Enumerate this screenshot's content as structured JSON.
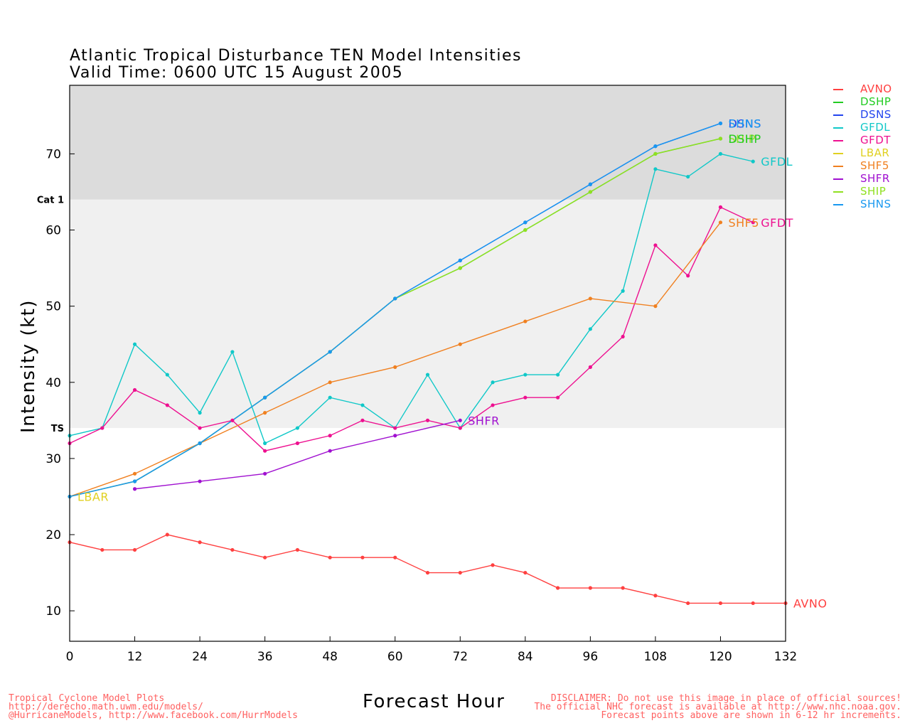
{
  "header": {
    "title": "Atlantic Tropical Disturbance TEN Model Intensities",
    "subtitle": "Valid Time: 0600 UTC 15 August 2005"
  },
  "footer": {
    "left": [
      "Tropical Cyclone Model Plots",
      "http://derecho.math.uwm.edu/models/",
      "@HurricaneModels, http://www.facebook.com/HurrModels"
    ],
    "right": [
      "DISCLAIMER: Do not use this image in place of official sources!",
      "The official NHC forecast is available at http://www.nhc.noaa.gov.",
      "Forecast points above are shown in 6-12 hr increments."
    ]
  },
  "chart_data": {
    "type": "line",
    "title": "Atlantic Tropical Disturbance TEN Model Intensities",
    "subtitle": "Valid Time: 0600 UTC 15 August 2005",
    "xlabel": "Forecast Hour",
    "ylabel": "Intensity (kt)",
    "xlim": [
      0,
      132
    ],
    "ylim": [
      6,
      79
    ],
    "xticks": [
      0,
      12,
      24,
      36,
      48,
      60,
      72,
      84,
      96,
      108,
      120,
      132
    ],
    "yticks": [
      10,
      20,
      30,
      40,
      50,
      60,
      70
    ],
    "grid": false,
    "legend_position": "right",
    "bands": [
      {
        "from": 34,
        "to": 64,
        "label": "TS",
        "color": "#f0f0f0"
      },
      {
        "from": 64,
        "to": 79,
        "label": "Cat 1",
        "color": "#dcdcdc"
      }
    ],
    "series": [
      {
        "name": "AVNO",
        "color": "#ff4040",
        "x": [
          0,
          6,
          12,
          18,
          24,
          30,
          36,
          42,
          48,
          54,
          60,
          66,
          72,
          78,
          84,
          90,
          96,
          102,
          108,
          114,
          120,
          126,
          132
        ],
        "y": [
          19,
          18,
          18,
          20,
          19,
          18,
          17,
          18,
          17,
          17,
          17,
          15,
          15,
          16,
          15,
          13,
          13,
          13,
          12,
          11,
          11,
          11,
          11
        ]
      },
      {
        "name": "DSHP",
        "color": "#22cc22",
        "x": [
          0,
          12,
          24,
          36,
          48,
          60,
          72,
          84,
          96,
          108,
          120
        ],
        "y": [
          25,
          27,
          32,
          38,
          44,
          51,
          55,
          60,
          65,
          70,
          72
        ]
      },
      {
        "name": "DSNS",
        "color": "#2244ee",
        "x": [
          0,
          12,
          24,
          36,
          48,
          60,
          72,
          84,
          96,
          108,
          120
        ],
        "y": [
          25,
          27,
          32,
          38,
          44,
          51,
          56,
          61,
          66,
          71,
          74
        ]
      },
      {
        "name": "GFDL",
        "color": "#10c8c8",
        "x": [
          0,
          6,
          12,
          18,
          24,
          30,
          36,
          42,
          48,
          54,
          60,
          66,
          72,
          78,
          84,
          90,
          96,
          102,
          108,
          114,
          120,
          126
        ],
        "y": [
          33,
          34,
          45,
          41,
          36,
          44,
          32,
          34,
          38,
          37,
          34,
          41,
          34,
          40,
          41,
          41,
          47,
          52,
          68,
          67,
          70,
          69
        ]
      },
      {
        "name": "GFDT",
        "color": "#ee1090",
        "x": [
          0,
          6,
          12,
          18,
          24,
          30,
          36,
          42,
          48,
          54,
          60,
          66,
          72,
          78,
          84,
          90,
          96,
          102,
          108,
          114,
          120,
          126
        ],
        "y": [
          32,
          34,
          39,
          37,
          34,
          35,
          31,
          32,
          33,
          35,
          34,
          35,
          34,
          37,
          38,
          38,
          42,
          46,
          58,
          54,
          63,
          61
        ]
      },
      {
        "name": "LBAR",
        "color": "#e0d020",
        "x": [
          0
        ],
        "y": [
          25
        ]
      },
      {
        "name": "SHF5",
        "color": "#f08020",
        "x": [
          0,
          12,
          24,
          36,
          48,
          60,
          72,
          84,
          96,
          108,
          120
        ],
        "y": [
          25,
          28,
          32,
          36,
          40,
          42,
          45,
          48,
          51,
          50,
          61
        ]
      },
      {
        "name": "SHFR",
        "color": "#a010d0",
        "x": [
          12,
          24,
          36,
          48,
          60,
          72
        ],
        "y": [
          26,
          27,
          28,
          31,
          33,
          35
        ]
      },
      {
        "name": "SHIP",
        "color": "#90e020",
        "x": [
          0,
          12,
          24,
          36,
          48,
          60,
          72,
          84,
          96,
          108,
          120
        ],
        "y": [
          25,
          27,
          32,
          38,
          44,
          51,
          55,
          60,
          65,
          70,
          72
        ]
      },
      {
        "name": "SHNS",
        "color": "#1898f0",
        "x": [
          0,
          12,
          24,
          36,
          48,
          60,
          72,
          84,
          96,
          108,
          120
        ],
        "y": [
          25,
          27,
          32,
          38,
          44,
          51,
          56,
          61,
          66,
          71,
          74
        ]
      }
    ],
    "end_labels": [
      {
        "text": "DSNS",
        "color": "#2244ee",
        "x": 120,
        "y": 74
      },
      {
        "text": "SHNS",
        "color": "#1898f0",
        "x": 120,
        "y": 74
      },
      {
        "text": "SHIP",
        "color": "#90e020",
        "x": 120,
        "y": 72
      },
      {
        "text": "DSHP",
        "color": "#22cc22",
        "x": 120,
        "y": 72
      },
      {
        "text": "GFDL",
        "color": "#10c8c8",
        "x": 126,
        "y": 69
      },
      {
        "text": "SHF5",
        "color": "#f08020",
        "x": 120,
        "y": 61
      },
      {
        "text": "GFDT",
        "color": "#ee1090",
        "x": 126,
        "y": 61
      },
      {
        "text": "SHFR",
        "color": "#a010d0",
        "x": 72,
        "y": 35
      },
      {
        "text": "LBAR",
        "color": "#e0d020",
        "x": 0,
        "y": 25
      },
      {
        "text": "AVNO",
        "color": "#ff4040",
        "x": 132,
        "y": 11
      }
    ]
  }
}
